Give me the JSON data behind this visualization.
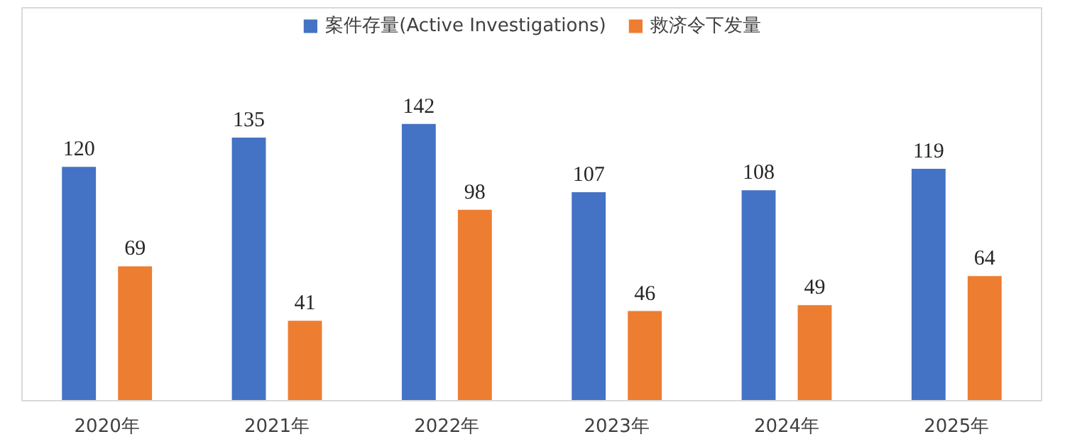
{
  "chart_data": {
    "type": "bar",
    "categories": [
      "2020年",
      "2021年",
      "2022年",
      "2023年",
      "2024年",
      "2025年"
    ],
    "series": [
      {
        "name": "案件存量(Active Investigations)",
        "color": "#4472c4",
        "values": [
          120,
          135,
          142,
          107,
          108,
          119
        ]
      },
      {
        "name": "救济令下发量",
        "color": "#ed7d31",
        "values": [
          69,
          41,
          98,
          46,
          49,
          64
        ]
      }
    ],
    "data_labels": true,
    "legend": "top",
    "grid": false
  }
}
